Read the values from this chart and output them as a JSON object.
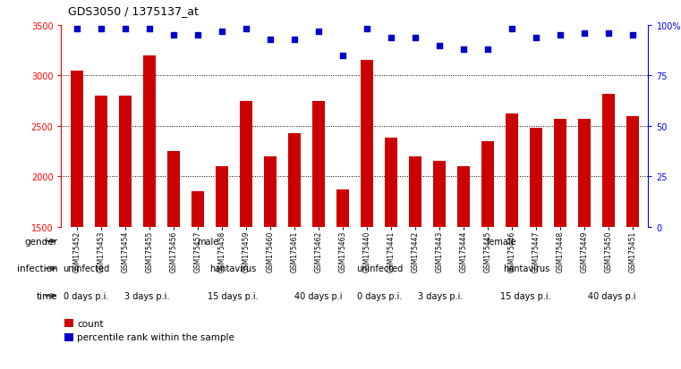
{
  "title": "GDS3050 / 1375137_at",
  "samples": [
    "GSM175452",
    "GSM175453",
    "GSM175454",
    "GSM175455",
    "GSM175456",
    "GSM175457",
    "GSM175458",
    "GSM175459",
    "GSM175460",
    "GSM175461",
    "GSM175462",
    "GSM175463",
    "GSM175440",
    "GSM175441",
    "GSM175442",
    "GSM175443",
    "GSM175444",
    "GSM175445",
    "GSM175446",
    "GSM175447",
    "GSM175448",
    "GSM175449",
    "GSM175450",
    "GSM175451"
  ],
  "counts": [
    3050,
    2800,
    2800,
    3200,
    2250,
    1850,
    2100,
    2750,
    2200,
    2430,
    2750,
    1870,
    3150,
    2380,
    2200,
    2150,
    2100,
    2350,
    2620,
    2480,
    2570,
    2570,
    2820,
    2600
  ],
  "percentile": [
    98,
    98,
    98,
    98,
    95,
    95,
    97,
    98,
    93,
    93,
    97,
    85,
    98,
    94,
    94,
    90,
    88,
    88,
    98,
    94,
    95,
    96,
    96,
    95
  ],
  "bar_color": "#cc0000",
  "dot_color": "#0000cc",
  "ylim_left": [
    1500,
    3500
  ],
  "ylim_right": [
    0,
    100
  ],
  "yticks_left": [
    1500,
    2000,
    2500,
    3000,
    3500
  ],
  "yticks_right": [
    0,
    25,
    50,
    75,
    100
  ],
  "dotted_lines": [
    2000,
    2500,
    3000
  ],
  "gender_male_color": "#b8e8b0",
  "gender_female_color": "#77cc77",
  "infection_uninfected_color": "#bbbbee",
  "infection_hantavirus_color": "#8888cc",
  "time_0d_color": "#f5cccc",
  "time_3d_color": "#eeaaaa",
  "time_15d_color": "#e09090",
  "time_40d_color": "#cc7777",
  "xtick_bg": "#cccccc",
  "gender_row": [
    {
      "label": "male",
      "start": 0,
      "end": 12
    },
    {
      "label": "female",
      "start": 12,
      "end": 24
    }
  ],
  "infection_row": [
    {
      "label": "uninfected",
      "start": 0,
      "end": 2
    },
    {
      "label": "hantavirus",
      "start": 2,
      "end": 12
    },
    {
      "label": "uninfected",
      "start": 12,
      "end": 14
    },
    {
      "label": "hantavirus",
      "start": 14,
      "end": 24
    }
  ],
  "time_row": [
    {
      "label": "0 days p.i.",
      "start": 0,
      "end": 2
    },
    {
      "label": "3 days p.i.",
      "start": 2,
      "end": 5
    },
    {
      "label": "15 days p.i.",
      "start": 5,
      "end": 9
    },
    {
      "label": "40 days p.i",
      "start": 9,
      "end": 12
    },
    {
      "label": "0 days p.i.",
      "start": 12,
      "end": 14
    },
    {
      "label": "3 days p.i.",
      "start": 14,
      "end": 17
    },
    {
      "label": "15 days p.i.",
      "start": 17,
      "end": 21
    },
    {
      "label": "40 days p.i",
      "start": 21,
      "end": 24
    }
  ],
  "legend": [
    {
      "label": "count",
      "color": "#cc0000"
    },
    {
      "label": "percentile rank within the sample",
      "color": "#0000cc"
    }
  ],
  "bar_width": 0.55
}
